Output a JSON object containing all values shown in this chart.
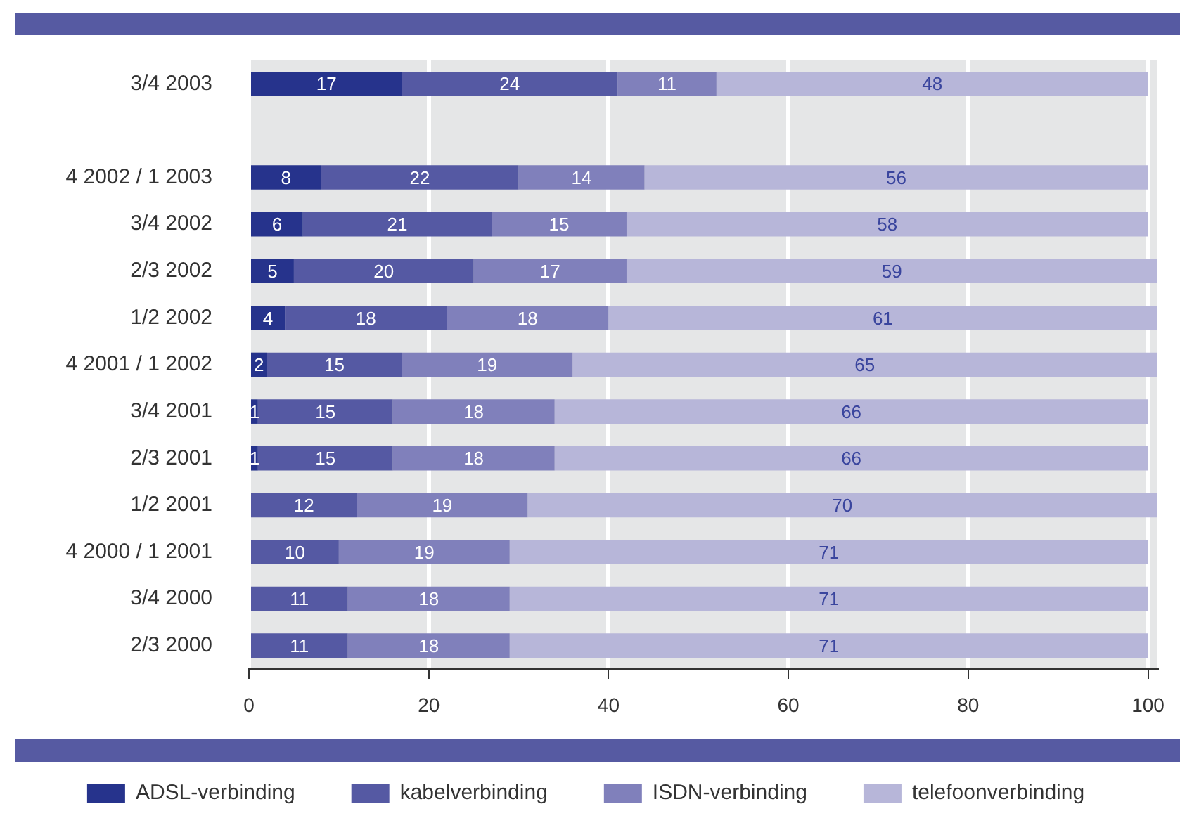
{
  "chart_data": {
    "type": "bar",
    "orientation": "horizontal",
    "stacked": true,
    "categories": [
      "3/4 2003",
      null,
      "4 2002 / 1 2003",
      "3/4 2002",
      "2/3 2002",
      "1/2 2002",
      "4 2001 / 1 2002",
      "3/4 2001",
      "2/3 2001",
      "1/2 2001",
      "4 2000 / 1 2001",
      "3/4 2000",
      "2/3 2000"
    ],
    "series": [
      {
        "name": "ADSL-verbinding",
        "color": "#26338c",
        "values": [
          17,
          null,
          8,
          6,
          5,
          4,
          2,
          1,
          1,
          null,
          null,
          null,
          null
        ]
      },
      {
        "name": "kabelverbinding",
        "color": "#5559a3",
        "values": [
          24,
          null,
          22,
          21,
          20,
          18,
          15,
          15,
          15,
          12,
          10,
          11,
          11
        ]
      },
      {
        "name": "ISDN-verbinding",
        "color": "#8080bb",
        "values": [
          11,
          null,
          14,
          15,
          17,
          18,
          19,
          18,
          18,
          19,
          19,
          18,
          18
        ]
      },
      {
        "name": "telefoonverbinding",
        "color": "#b7b6d9",
        "values": [
          48,
          null,
          56,
          58,
          59,
          61,
          65,
          66,
          66,
          70,
          71,
          71,
          71
        ]
      }
    ],
    "xlim": [
      0,
      101
    ],
    "xticks": [
      0,
      20,
      40,
      60,
      80,
      100
    ],
    "grid": "x",
    "legend": "bottom",
    "data_labels": true
  }
}
